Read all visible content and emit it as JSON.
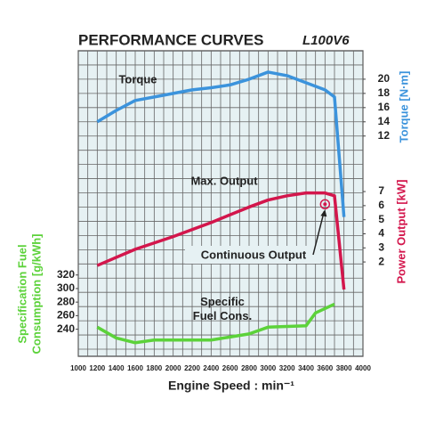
{
  "chart_data": {
    "type": "line",
    "title": "PERFORMANCE CURVES",
    "subtitle": "L100V6",
    "xlabel": "Engine Speed : min⁻¹",
    "xlim": [
      1000,
      4000
    ],
    "xticks": [
      1000,
      1200,
      1400,
      1600,
      1800,
      2000,
      2200,
      2400,
      2600,
      2800,
      3000,
      3200,
      3400,
      3600,
      3800,
      4000
    ],
    "ylabel": "Torque [N·m]",
    "ylim": [
      -19,
      24
    ],
    "yticks": [
      12,
      14,
      16,
      18,
      20
    ],
    "y2label": "Power Output [kW]",
    "y2lim": [
      -4.7,
      17
    ],
    "y2ticks": [
      2,
      3,
      4,
      5,
      6,
      7
    ],
    "y3label": [
      "Specification Fuel",
      "Consumption [g/kWh]"
    ],
    "y3lim": [
      200,
      651
    ],
    "y3ticks": [
      240,
      260,
      280,
      300,
      320
    ],
    "grid": true,
    "series": [
      {
        "name": "Torque",
        "axis": "y",
        "color": "#3b93dc",
        "x": [
          1200,
          1400,
          1600,
          1800,
          2000,
          2200,
          2400,
          2600,
          2800,
          3000,
          3200,
          3400,
          3600,
          3700,
          3800
        ],
        "values": [
          14,
          15.6,
          17,
          17.5,
          18,
          18.5,
          18.8,
          19.2,
          20,
          21,
          20.5,
          19.5,
          18.5,
          17.5,
          0.6
        ]
      },
      {
        "name": "Max. Output",
        "axis": "y2",
        "color": "#d3164c",
        "x": [
          1200,
          1600,
          2000,
          2400,
          2800,
          3000,
          3200,
          3400,
          3600,
          3700,
          3800
        ],
        "values": [
          1.75,
          2.9,
          3.8,
          4.8,
          5.9,
          6.4,
          6.7,
          6.9,
          6.9,
          6.7,
          0.04
        ]
      },
      {
        "name": "Specific\nFuel Cons.",
        "axis": "y3",
        "color": "#5cd23a",
        "x": [
          1200,
          1400,
          1600,
          1800,
          2400,
          2800,
          3000,
          3400,
          3500,
          3700
        ],
        "values": [
          243,
          227,
          220,
          224,
          224,
          233,
          243,
          245,
          264,
          277
        ]
      }
    ],
    "annotations": [
      {
        "text": "Continuous Output",
        "x": 3600,
        "y": 6.1,
        "axis": "y2"
      }
    ]
  }
}
